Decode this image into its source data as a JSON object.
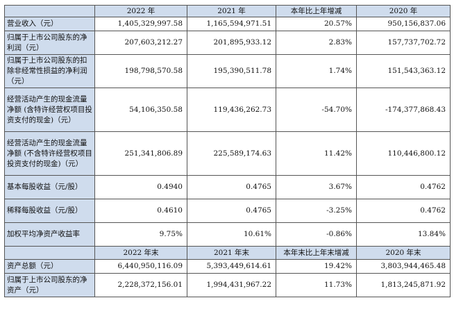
{
  "headers": {
    "first": [
      "2022 年",
      "2021 年",
      "本年比上年增减",
      "2020 年"
    ],
    "second": [
      "2022 年末",
      "2021 年末",
      "本年末比上年末增减",
      "2020 年末"
    ]
  },
  "rows": [
    {
      "label": "营业收入（元）",
      "values": [
        "1,405,329,997.58",
        "1,165,594,971.51",
        "20.57%",
        "950,156,837.06"
      ]
    },
    {
      "label": "归属于上市公司股东的净利润（元）",
      "values": [
        "207,603,212.27",
        "201,895,933.12",
        "2.83%",
        "157,737,702.72"
      ]
    },
    {
      "label": "归属于上市公司股东的扣除非经常性损益的净利润（元）",
      "values": [
        "198,798,570.58",
        "195,390,511.78",
        "1.74%",
        "151,543,363.12"
      ]
    },
    {
      "label": "经营活动产生的现金流量净额 (含特许经营权项目投资支付的现金)（元）",
      "values": [
        "54,106,350.58",
        "119,436,262.73",
        "-54.70%",
        "-174,377,868.43"
      ]
    },
    {
      "label": "经营活动产生的现金流量净额 (不含特许经营权项目投资支付的现金)（元）",
      "values": [
        "251,341,806.89",
        "225,589,174.63",
        "11.42%",
        "110,446,800.12"
      ]
    },
    {
      "label": "基本每股收益（元/股）",
      "values": [
        "0.4940",
        "0.4765",
        "3.67%",
        "0.4762"
      ]
    },
    {
      "label": "稀释每股收益（元/股）",
      "values": [
        "0.4610",
        "0.4765",
        "-3.25%",
        "0.4762"
      ]
    },
    {
      "label": "加权平均净资产收益率",
      "values": [
        "9.75%",
        "10.61%",
        "-0.86%",
        "13.84%"
      ]
    }
  ],
  "rows2": [
    {
      "label": "资产总额（元）",
      "values": [
        "6,440,950,116.09",
        "5,393,449,614.61",
        "19.42%",
        "3,803,944,465.48"
      ]
    },
    {
      "label": "归属于上市公司股东的净资产（元）",
      "values": [
        "2,228,372,156.01",
        "1,994,431,967.22",
        "11.73%",
        "1,813,245,871.92"
      ]
    }
  ]
}
